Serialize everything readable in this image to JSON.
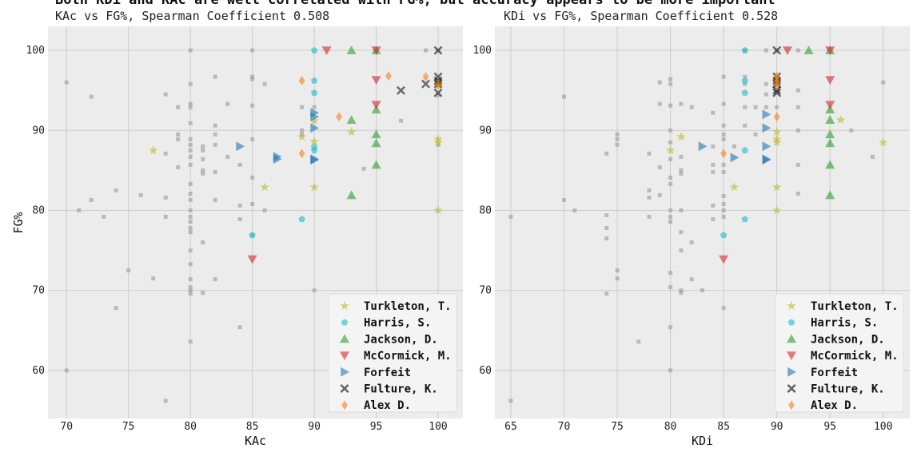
{
  "title": "Both KDi and KAc are well correlated with FG%, but accuracy appears to be more important",
  "chart_data": [
    {
      "type": "scatter",
      "subtitle": "KAc vs FG%, Spearman Coefficient 0.508",
      "xlabel": "KAc",
      "ylabel": "FG%",
      "xlim": [
        68.5,
        102
      ],
      "ylim": [
        54,
        103
      ],
      "xticks": [
        70,
        75,
        80,
        85,
        90,
        95,
        100
      ],
      "yticks": [
        60,
        70,
        80,
        90,
        100
      ],
      "grid": true,
      "legend_position": "lower-right",
      "background": [
        [
          70,
          96
        ],
        [
          70,
          60
        ],
        [
          71,
          80
        ],
        [
          72,
          94.2
        ],
        [
          72,
          81.3
        ],
        [
          73,
          79.2
        ],
        [
          74,
          82.5
        ],
        [
          74,
          67.8
        ],
        [
          75,
          72.5
        ],
        [
          76,
          81.9
        ],
        [
          77,
          71.5
        ],
        [
          78,
          94.5
        ],
        [
          78,
          87.1
        ],
        [
          78,
          81.6
        ],
        [
          78,
          79.2
        ],
        [
          78,
          56.2
        ],
        [
          79,
          92.9
        ],
        [
          79,
          89.5
        ],
        [
          79,
          88.9
        ],
        [
          79,
          85.4
        ],
        [
          80,
          100
        ],
        [
          80,
          95.8
        ],
        [
          80,
          93.3
        ],
        [
          80,
          92.9
        ],
        [
          80,
          90.9
        ],
        [
          80,
          88.9
        ],
        [
          80,
          88.2
        ],
        [
          80,
          87.5
        ],
        [
          80,
          86.7
        ],
        [
          80,
          85.7
        ],
        [
          80,
          83.3
        ],
        [
          80,
          82.1
        ],
        [
          80,
          81.3
        ],
        [
          80,
          80
        ],
        [
          80,
          79.2
        ],
        [
          80,
          78.6
        ],
        [
          80,
          77.8
        ],
        [
          80,
          77.3
        ],
        [
          80,
          75
        ],
        [
          80,
          73.3
        ],
        [
          80,
          71.4
        ],
        [
          80,
          70.4
        ],
        [
          80,
          70
        ],
        [
          80,
          69.6
        ],
        [
          80,
          63.6
        ],
        [
          81,
          88
        ],
        [
          81,
          87.5
        ],
        [
          81,
          86.4
        ],
        [
          81,
          85
        ],
        [
          81,
          84.6
        ],
        [
          81,
          76
        ],
        [
          81,
          69.7
        ],
        [
          82,
          96.7
        ],
        [
          82,
          90.6
        ],
        [
          82,
          89.5
        ],
        [
          82,
          88.2
        ],
        [
          82,
          84.8
        ],
        [
          82,
          81.3
        ],
        [
          82,
          71.4
        ],
        [
          83,
          93.3
        ],
        [
          83,
          86.7
        ],
        [
          84,
          85.7
        ],
        [
          84,
          80.6
        ],
        [
          84,
          78.9
        ],
        [
          84,
          65.4
        ],
        [
          85,
          100
        ],
        [
          85,
          96.7
        ],
        [
          85,
          96.4
        ],
        [
          85,
          93.1
        ],
        [
          85,
          88.9
        ],
        [
          85,
          84.1
        ],
        [
          85,
          80.8
        ],
        [
          85,
          76.9
        ],
        [
          86,
          95.8
        ],
        [
          86,
          80
        ],
        [
          89,
          92.9
        ],
        [
          89,
          90
        ],
        [
          89,
          89.5
        ],
        [
          90,
          92.9
        ],
        [
          90,
          70
        ],
        [
          94,
          85.2
        ],
        [
          97,
          91.2
        ],
        [
          99,
          100
        ],
        [
          100,
          100
        ],
        [
          100,
          94.4
        ],
        [
          100,
          88.2
        ]
      ],
      "series": [
        {
          "name": "Turkleton, T.",
          "marker": "star",
          "color": "#bcbd22",
          "points": [
            [
              77,
              87.5
            ],
            [
              86,
              82.9
            ],
            [
              89,
              89.2
            ],
            [
              90,
              91.2
            ],
            [
              90,
              88.6
            ],
            [
              90,
              82.9
            ],
            [
              93,
              89.8
            ],
            [
              100,
              96
            ],
            [
              100,
              95.6
            ],
            [
              100,
              88.9
            ],
            [
              100,
              88.5
            ],
            [
              100,
              80
            ]
          ]
        },
        {
          "name": "Harris, S.",
          "marker": "pentagon",
          "color": "#17becf",
          "points": [
            [
              85,
              76.9
            ],
            [
              89,
              78.9
            ],
            [
              90,
              100
            ],
            [
              90,
              96.2
            ],
            [
              90,
              94.7
            ],
            [
              90,
              87.9
            ],
            [
              90,
              87.5
            ]
          ]
        },
        {
          "name": "Jackson, D.",
          "marker": "triangle-up",
          "color": "#2ca02c",
          "points": [
            [
              93,
              100
            ],
            [
              93,
              91.3
            ],
            [
              93,
              81.9
            ],
            [
              95,
              100
            ],
            [
              95,
              92.6
            ],
            [
              95,
              89.5
            ],
            [
              95,
              88.4
            ],
            [
              95,
              85.7
            ]
          ]
        },
        {
          "name": "McCormick, M.",
          "marker": "triangle-down",
          "color": "#d62728",
          "points": [
            [
              85,
              73.9
            ],
            [
              91,
              100
            ],
            [
              95,
              100
            ],
            [
              95,
              96.3
            ],
            [
              95,
              93.2
            ]
          ]
        },
        {
          "name": "Forfeit",
          "marker": "triangle-right",
          "color": "#1f77b4",
          "points": [
            [
              84,
              88
            ],
            [
              87,
              86.7
            ],
            [
              87,
              86.4
            ],
            [
              90,
              92.2
            ],
            [
              90,
              91.7
            ],
            [
              90,
              90.3
            ],
            [
              90,
              86.4
            ],
            [
              90,
              86.3
            ]
          ]
        },
        {
          "name": "Fulture, K.",
          "marker": "x",
          "color": "#000000",
          "points": [
            [
              97,
              95
            ],
            [
              99,
              95.8
            ],
            [
              100,
              100
            ],
            [
              100,
              96.7
            ],
            [
              100,
              96.2
            ],
            [
              100,
              95.8
            ],
            [
              100,
              94.7
            ]
          ]
        },
        {
          "name": "Alex D.",
          "marker": "diamond",
          "color": "#ff7f0e",
          "points": [
            [
              89,
              96.2
            ],
            [
              89,
              87.1
            ],
            [
              92,
              91.7
            ],
            [
              96,
              96.8
            ],
            [
              99,
              96.7
            ],
            [
              100,
              95.7
            ]
          ]
        }
      ]
    },
    {
      "type": "scatter",
      "subtitle": "KDi vs FG%, Spearman Coefficient 0.528",
      "xlabel": "KDi",
      "ylabel": "",
      "xlim": [
        63.5,
        102.5
      ],
      "ylim": [
        54,
        103
      ],
      "xticks": [
        65,
        70,
        75,
        80,
        85,
        90,
        95,
        100
      ],
      "yticks": [
        60,
        70,
        80,
        90,
        100
      ],
      "grid": true,
      "legend_position": "lower-right",
      "background": [
        [
          65,
          79.2
        ],
        [
          65,
          56.2
        ],
        [
          70,
          94.2
        ],
        [
          70,
          81.3
        ],
        [
          71,
          80
        ],
        [
          74,
          87.1
        ],
        [
          74,
          79.4
        ],
        [
          74,
          77.8
        ],
        [
          74,
          76.5
        ],
        [
          74,
          69.6
        ],
        [
          75,
          89.5
        ],
        [
          75,
          88.9
        ],
        [
          75,
          88.2
        ],
        [
          75,
          72.5
        ],
        [
          75,
          71.5
        ],
        [
          77,
          63.6
        ],
        [
          78,
          87.1
        ],
        [
          78,
          82.5
        ],
        [
          78,
          81.6
        ],
        [
          78,
          79.2
        ],
        [
          79,
          96
        ],
        [
          79,
          93.3
        ],
        [
          79,
          85.4
        ],
        [
          79,
          81.9
        ],
        [
          80,
          96.4
        ],
        [
          80,
          95.8
        ],
        [
          80,
          93.1
        ],
        [
          80,
          90
        ],
        [
          80,
          88.5
        ],
        [
          80,
          86.4
        ],
        [
          80,
          84.1
        ],
        [
          80,
          83.3
        ],
        [
          80,
          80
        ],
        [
          80,
          79.2
        ],
        [
          80,
          78.6
        ],
        [
          80,
          72.2
        ],
        [
          80,
          70.4
        ],
        [
          80,
          65.4
        ],
        [
          80,
          60
        ],
        [
          81,
          93.3
        ],
        [
          81,
          86.7
        ],
        [
          81,
          85
        ],
        [
          81,
          84.6
        ],
        [
          81,
          80
        ],
        [
          81,
          77.3
        ],
        [
          81,
          75
        ],
        [
          81,
          70
        ],
        [
          81,
          69.7
        ],
        [
          82,
          92.9
        ],
        [
          82,
          76
        ],
        [
          82,
          71.4
        ],
        [
          83,
          70
        ],
        [
          84,
          92.2
        ],
        [
          84,
          88
        ],
        [
          84,
          85.7
        ],
        [
          84,
          84.8
        ],
        [
          84,
          80.6
        ],
        [
          84,
          78.9
        ],
        [
          85,
          96.7
        ],
        [
          85,
          93.3
        ],
        [
          85,
          90.6
        ],
        [
          85,
          89.5
        ],
        [
          85,
          88.9
        ],
        [
          85,
          85.7
        ],
        [
          85,
          84.8
        ],
        [
          85,
          81.8
        ],
        [
          85,
          80.8
        ],
        [
          85,
          80
        ],
        [
          85,
          79.2
        ],
        [
          85,
          67.8
        ],
        [
          86,
          88
        ],
        [
          87,
          100
        ],
        [
          87,
          96.7
        ],
        [
          87,
          95.8
        ],
        [
          87,
          92.9
        ],
        [
          87,
          90.6
        ],
        [
          88,
          92.9
        ],
        [
          88,
          89.5
        ],
        [
          89,
          100
        ],
        [
          89,
          95.8
        ],
        [
          89,
          94.5
        ],
        [
          89,
          92.9
        ],
        [
          90,
          100
        ],
        [
          90,
          92.9
        ],
        [
          92,
          100
        ],
        [
          92,
          95
        ],
        [
          92,
          92.9
        ],
        [
          92,
          90
        ],
        [
          92,
          85.7
        ],
        [
          92,
          82.1
        ],
        [
          97,
          90
        ],
        [
          99,
          86.7
        ],
        [
          100,
          96
        ]
      ],
      "series": [
        {
          "name": "Turkleton, T.",
          "marker": "star",
          "color": "#bcbd22",
          "points": [
            [
              80,
              87.5
            ],
            [
              81,
              89.2
            ],
            [
              86,
              82.9
            ],
            [
              90,
              96
            ],
            [
              90,
              89.8
            ],
            [
              90,
              88.9
            ],
            [
              90,
              88.5
            ],
            [
              90,
              82.9
            ],
            [
              90,
              80
            ],
            [
              96,
              91.3
            ],
            [
              100,
              88.5
            ]
          ]
        },
        {
          "name": "Harris, S.",
          "marker": "pentagon",
          "color": "#17becf",
          "points": [
            [
              85,
              76.9
            ],
            [
              87,
              100
            ],
            [
              87,
              96.2
            ],
            [
              87,
              94.7
            ],
            [
              87,
              87.5
            ],
            [
              87,
              78.9
            ]
          ]
        },
        {
          "name": "Jackson, D.",
          "marker": "triangle-up",
          "color": "#2ca02c",
          "points": [
            [
              93,
              100
            ],
            [
              95,
              100
            ],
            [
              95,
              92.6
            ],
            [
              95,
              91.3
            ],
            [
              95,
              89.5
            ],
            [
              95,
              88.4
            ],
            [
              95,
              85.7
            ],
            [
              95,
              81.9
            ]
          ]
        },
        {
          "name": "McCormick, M.",
          "marker": "triangle-down",
          "color": "#d62728",
          "points": [
            [
              85,
              73.9
            ],
            [
              91,
              100
            ],
            [
              95,
              100
            ],
            [
              95,
              96.3
            ],
            [
              95,
              93.2
            ]
          ]
        },
        {
          "name": "Forfeit",
          "marker": "triangle-right",
          "color": "#1f77b4",
          "points": [
            [
              83,
              88
            ],
            [
              86,
              86.6
            ],
            [
              89,
              92
            ],
            [
              89,
              90.3
            ],
            [
              89,
              88
            ],
            [
              89,
              86.4
            ],
            [
              89,
              86.3
            ]
          ]
        },
        {
          "name": "Fulture, K.",
          "marker": "x",
          "color": "#000000",
          "points": [
            [
              90,
              100
            ],
            [
              90,
              96.7
            ],
            [
              90,
              96.2
            ],
            [
              90,
              95.8
            ],
            [
              90,
              95
            ],
            [
              90,
              94.7
            ]
          ]
        },
        {
          "name": "Alex D.",
          "marker": "diamond",
          "color": "#ff7f0e",
          "points": [
            [
              85,
              87.1
            ],
            [
              90,
              96.8
            ],
            [
              90,
              96.2
            ],
            [
              90,
              91.7
            ],
            [
              90,
              95.7
            ]
          ]
        }
      ]
    }
  ]
}
